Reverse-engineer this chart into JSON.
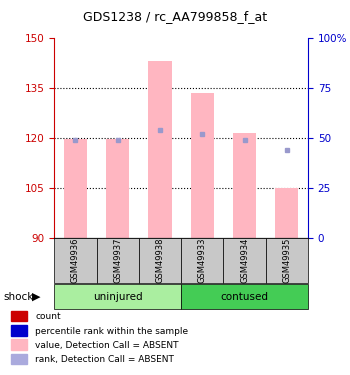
{
  "title": "GDS1238 / rc_AA799858_f_at",
  "samples": [
    "GSM49936",
    "GSM49937",
    "GSM49938",
    "GSM49933",
    "GSM49934",
    "GSM49935"
  ],
  "ylim_left": [
    90,
    150
  ],
  "ylim_right": [
    0,
    100
  ],
  "yticks_left": [
    90,
    105,
    120,
    135,
    150
  ],
  "yticks_right": [
    0,
    25,
    50,
    75,
    100
  ],
  "ytick_labels_right": [
    "0",
    "25",
    "50",
    "75",
    "100%"
  ],
  "pink_bar_values": [
    119.5,
    119.5,
    143.0,
    133.5,
    121.5,
    105.0
  ],
  "blue_dot_values": [
    49,
    49,
    54,
    52,
    49,
    44
  ],
  "pink_bar_color": "#FFB6C1",
  "blue_dot_color": "#9999CC",
  "left_axis_color": "#CC0000",
  "right_axis_color": "#0000CC",
  "grid_yticks": [
    105,
    120,
    135
  ],
  "group_info": [
    {
      "label": "uninjured",
      "start": 0,
      "end": 3,
      "color": "#AAEEA0"
    },
    {
      "label": "contused",
      "start": 3,
      "end": 6,
      "color": "#44CC55"
    }
  ],
  "legend_items": [
    {
      "label": "count",
      "color": "#CC0000"
    },
    {
      "label": "percentile rank within the sample",
      "color": "#0000CC"
    },
    {
      "label": "value, Detection Call = ABSENT",
      "color": "#FFB6C1"
    },
    {
      "label": "rank, Detection Call = ABSENT",
      "color": "#AAAADD"
    }
  ],
  "shock_label": "shock",
  "sample_label_color": "#000000",
  "box_color": "#C8C8C8"
}
